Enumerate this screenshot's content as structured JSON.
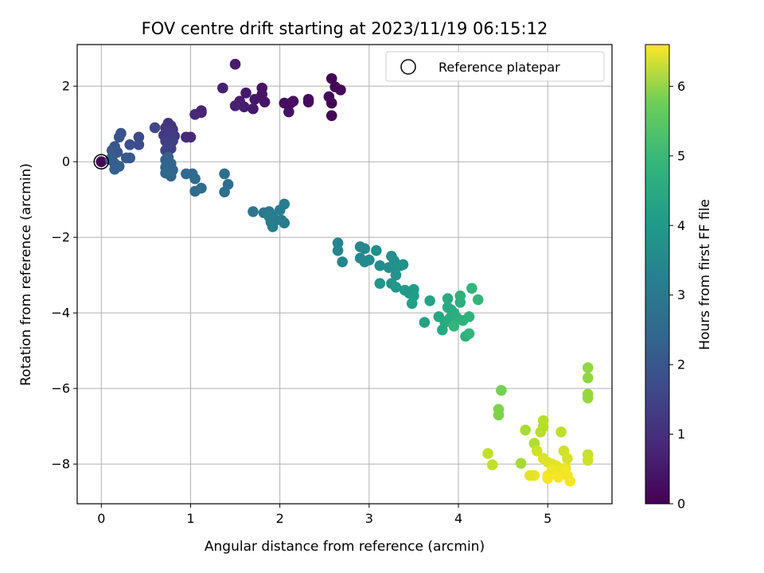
{
  "chart_data": {
    "type": "scatter",
    "title": "FOV centre drift starting at 2023/11/19 06:15:12",
    "xlabel": "Angular distance from reference (arcmin)",
    "ylabel": "Rotation from reference (arcmin)",
    "xlim": [
      -0.27,
      5.72
    ],
    "ylim": [
      -9.05,
      3.1
    ],
    "xticks": [
      0,
      1,
      2,
      3,
      4,
      5
    ],
    "yticks": [
      -8,
      -6,
      -4,
      -2,
      0,
      2
    ],
    "grid": true,
    "legend": {
      "placement": "top-right",
      "entries": [
        "Reference platepar"
      ]
    },
    "colorbar": {
      "label": "Hours from first FF file",
      "range": [
        0,
        6.6
      ],
      "ticks": [
        0,
        1,
        2,
        3,
        4,
        5,
        6
      ],
      "colormap": "viridis"
    },
    "reference_point": {
      "x": 0,
      "y": 0
    },
    "points": [
      [
        0,
        0,
        0.0
      ],
      [
        2.58,
        2.2,
        0.05
      ],
      [
        2.58,
        1.55,
        0.05
      ],
      [
        2.58,
        1.22,
        0.05
      ],
      [
        2.62,
        1.98,
        0.1
      ],
      [
        2.68,
        1.9,
        0.1
      ],
      [
        2.55,
        1.72,
        0.15
      ],
      [
        2.32,
        1.65,
        0.2
      ],
      [
        2.32,
        1.58,
        0.2
      ],
      [
        2.12,
        1.55,
        0.25
      ],
      [
        2.05,
        1.55,
        0.25
      ],
      [
        2.1,
        1.32,
        0.3
      ],
      [
        2.15,
        1.6,
        0.3
      ],
      [
        1.8,
        1.95,
        0.35
      ],
      [
        1.8,
        1.78,
        0.35
      ],
      [
        1.83,
        1.58,
        0.4
      ],
      [
        1.72,
        1.65,
        0.4
      ],
      [
        1.7,
        1.4,
        0.45
      ],
      [
        1.62,
        1.82,
        0.45
      ],
      [
        1.5,
        2.58,
        0.5
      ],
      [
        1.55,
        1.6,
        0.5
      ],
      [
        1.6,
        1.45,
        0.55
      ],
      [
        1.5,
        1.48,
        0.6
      ],
      [
        1.36,
        1.95,
        0.6
      ],
      [
        1.12,
        1.3,
        0.7
      ],
      [
        1.12,
        1.35,
        0.7
      ],
      [
        1.05,
        1.25,
        0.75
      ],
      [
        1.0,
        0.65,
        0.8
      ],
      [
        0.95,
        0.65,
        0.8
      ],
      [
        0.75,
        1.02,
        1.0
      ],
      [
        0.78,
        0.95,
        1.0
      ],
      [
        0.72,
        0.9,
        1.05
      ],
      [
        0.8,
        0.85,
        1.05
      ],
      [
        0.75,
        0.8,
        1.1
      ],
      [
        0.7,
        0.7,
        1.1
      ],
      [
        0.78,
        0.72,
        1.15
      ],
      [
        0.82,
        0.68,
        1.15
      ],
      [
        0.72,
        0.55,
        1.2
      ],
      [
        0.8,
        0.55,
        1.2
      ],
      [
        0.75,
        0.42,
        1.25
      ],
      [
        0.72,
        0.3,
        1.3
      ],
      [
        0.78,
        0.35,
        1.3
      ],
      [
        0.6,
        0.9,
        1.4
      ],
      [
        0.42,
        0.65,
        1.5
      ],
      [
        0.42,
        0.45,
        1.55
      ],
      [
        0.32,
        0.45,
        1.6
      ],
      [
        0.22,
        0.75,
        1.65
      ],
      [
        0.2,
        0.65,
        1.7
      ],
      [
        0.15,
        0.4,
        1.75
      ],
      [
        0.18,
        0.25,
        1.8
      ],
      [
        0.12,
        0.3,
        1.8
      ],
      [
        0.28,
        0.1,
        1.85
      ],
      [
        0.32,
        0.1,
        1.85
      ],
      [
        0.12,
        0.12,
        1.9
      ],
      [
        0.1,
        0.05,
        1.95
      ],
      [
        0.15,
        -0.05,
        1.95
      ],
      [
        0.2,
        -0.12,
        2.0
      ],
      [
        0.15,
        -0.2,
        2.0
      ],
      [
        0.75,
        0.12,
        2.05
      ],
      [
        0.72,
        0.05,
        2.05
      ],
      [
        0.78,
        -0.05,
        2.1
      ],
      [
        0.72,
        -0.15,
        2.1
      ],
      [
        0.8,
        -0.22,
        2.15
      ],
      [
        0.75,
        -0.3,
        2.15
      ],
      [
        0.78,
        -0.38,
        2.2
      ],
      [
        0.72,
        -0.3,
        2.2
      ],
      [
        0.95,
        -0.32,
        2.25
      ],
      [
        1.02,
        -0.32,
        2.25
      ],
      [
        1.05,
        -0.45,
        2.3
      ],
      [
        1.05,
        -0.78,
        2.3
      ],
      [
        1.12,
        -0.7,
        2.35
      ],
      [
        1.38,
        -0.32,
        2.4
      ],
      [
        1.42,
        -0.6,
        2.4
      ],
      [
        1.38,
        -0.8,
        2.45
      ],
      [
        1.7,
        -1.32,
        2.6
      ],
      [
        1.82,
        -1.35,
        2.6
      ],
      [
        1.88,
        -1.32,
        2.65
      ],
      [
        1.92,
        -1.45,
        2.65
      ],
      [
        1.9,
        -1.6,
        2.7
      ],
      [
        1.95,
        -1.55,
        2.7
      ],
      [
        2.05,
        -1.62,
        2.75
      ],
      [
        2.02,
        -1.55,
        2.75
      ],
      [
        2.05,
        -1.12,
        2.8
      ],
      [
        2.0,
        -1.28,
        2.8
      ],
      [
        1.92,
        -1.72,
        2.85
      ],
      [
        1.88,
        -1.45,
        2.85
      ],
      [
        2.65,
        -2.15,
        3.0
      ],
      [
        2.65,
        -2.35,
        3.0
      ],
      [
        2.7,
        -2.65,
        3.05
      ],
      [
        2.9,
        -2.25,
        3.05
      ],
      [
        2.95,
        -2.3,
        3.1
      ],
      [
        2.9,
        -2.55,
        3.1
      ],
      [
        2.95,
        -2.65,
        3.15
      ],
      [
        3.0,
        -2.6,
        3.15
      ],
      [
        3.08,
        -2.35,
        3.2
      ],
      [
        3.12,
        -2.75,
        3.2
      ],
      [
        3.22,
        -2.8,
        3.25
      ],
      [
        3.25,
        -2.5,
        3.25
      ],
      [
        3.28,
        -2.62,
        3.3
      ],
      [
        3.3,
        -2.8,
        3.3
      ],
      [
        3.35,
        -2.75,
        3.35
      ],
      [
        3.38,
        -2.72,
        3.35
      ],
      [
        3.3,
        -3.0,
        3.4
      ],
      [
        3.12,
        -3.22,
        3.45
      ],
      [
        3.25,
        -3.22,
        3.45
      ],
      [
        3.3,
        -3.32,
        3.5
      ],
      [
        3.4,
        -3.4,
        3.55
      ],
      [
        3.45,
        -3.48,
        3.6
      ],
      [
        3.5,
        -3.38,
        3.65
      ],
      [
        3.5,
        -3.55,
        3.7
      ],
      [
        3.48,
        -3.75,
        3.75
      ],
      [
        3.62,
        -4.25,
        3.8
      ],
      [
        3.68,
        -3.68,
        3.85
      ],
      [
        3.78,
        -4.1,
        3.9
      ],
      [
        3.82,
        -4.45,
        3.95
      ],
      [
        3.85,
        -4.25,
        4.0
      ],
      [
        3.88,
        -3.62,
        4.0
      ],
      [
        3.88,
        -3.85,
        4.05
      ],
      [
        3.92,
        -3.92,
        4.05
      ],
      [
        3.95,
        -4.0,
        4.1
      ],
      [
        3.9,
        -4.15,
        4.1
      ],
      [
        3.98,
        -4.12,
        4.15
      ],
      [
        4.02,
        -3.72,
        4.15
      ],
      [
        4.02,
        -3.55,
        4.2
      ],
      [
        4.05,
        -4.2,
        4.2
      ],
      [
        4.08,
        -4.62,
        4.25
      ],
      [
        4.12,
        -4.1,
        4.25
      ],
      [
        4.12,
        -4.55,
        4.3
      ],
      [
        4.15,
        -3.35,
        4.3
      ],
      [
        4.22,
        -3.65,
        4.35
      ],
      [
        3.95,
        -4.35,
        4.35
      ],
      [
        4.48,
        -6.05,
        5.2
      ],
      [
        4.45,
        -6.55,
        5.3
      ],
      [
        4.45,
        -6.7,
        5.3
      ],
      [
        5.45,
        -5.45,
        5.5
      ],
      [
        5.45,
        -5.72,
        5.5
      ],
      [
        5.45,
        -6.15,
        5.55
      ],
      [
        5.45,
        -6.25,
        5.55
      ],
      [
        4.7,
        -7.98,
        5.7
      ],
      [
        4.75,
        -7.1,
        5.75
      ],
      [
        4.85,
        -7.45,
        5.8
      ],
      [
        4.95,
        -6.85,
        5.85
      ],
      [
        4.95,
        -7.02,
        5.9
      ],
      [
        4.92,
        -7.15,
        5.9
      ],
      [
        5.15,
        -7.15,
        5.95
      ],
      [
        4.33,
        -7.72,
        6.0
      ],
      [
        4.38,
        -8.02,
        6.0
      ],
      [
        5.45,
        -7.75,
        6.05
      ],
      [
        5.45,
        -7.9,
        6.1
      ],
      [
        4.88,
        -7.65,
        6.1
      ],
      [
        5.18,
        -7.65,
        6.15
      ],
      [
        5.22,
        -7.85,
        6.2
      ],
      [
        4.95,
        -7.85,
        6.25
      ],
      [
        5.0,
        -7.95,
        6.3
      ],
      [
        5.05,
        -8.0,
        6.3
      ],
      [
        5.1,
        -8.05,
        6.35
      ],
      [
        5.15,
        -8.15,
        6.4
      ],
      [
        5.2,
        -8.1,
        6.4
      ],
      [
        5.22,
        -8.3,
        6.45
      ],
      [
        5.25,
        -8.45,
        6.5
      ],
      [
        5.0,
        -8.3,
        6.5
      ],
      [
        5.05,
        -8.15,
        6.45
      ],
      [
        4.85,
        -8.3,
        6.4
      ],
      [
        4.8,
        -8.3,
        6.35
      ],
      [
        5.12,
        -8.35,
        6.55
      ],
      [
        5.0,
        -8.38,
        6.55
      ],
      [
        5.2,
        -8.2,
        6.5
      ]
    ]
  }
}
